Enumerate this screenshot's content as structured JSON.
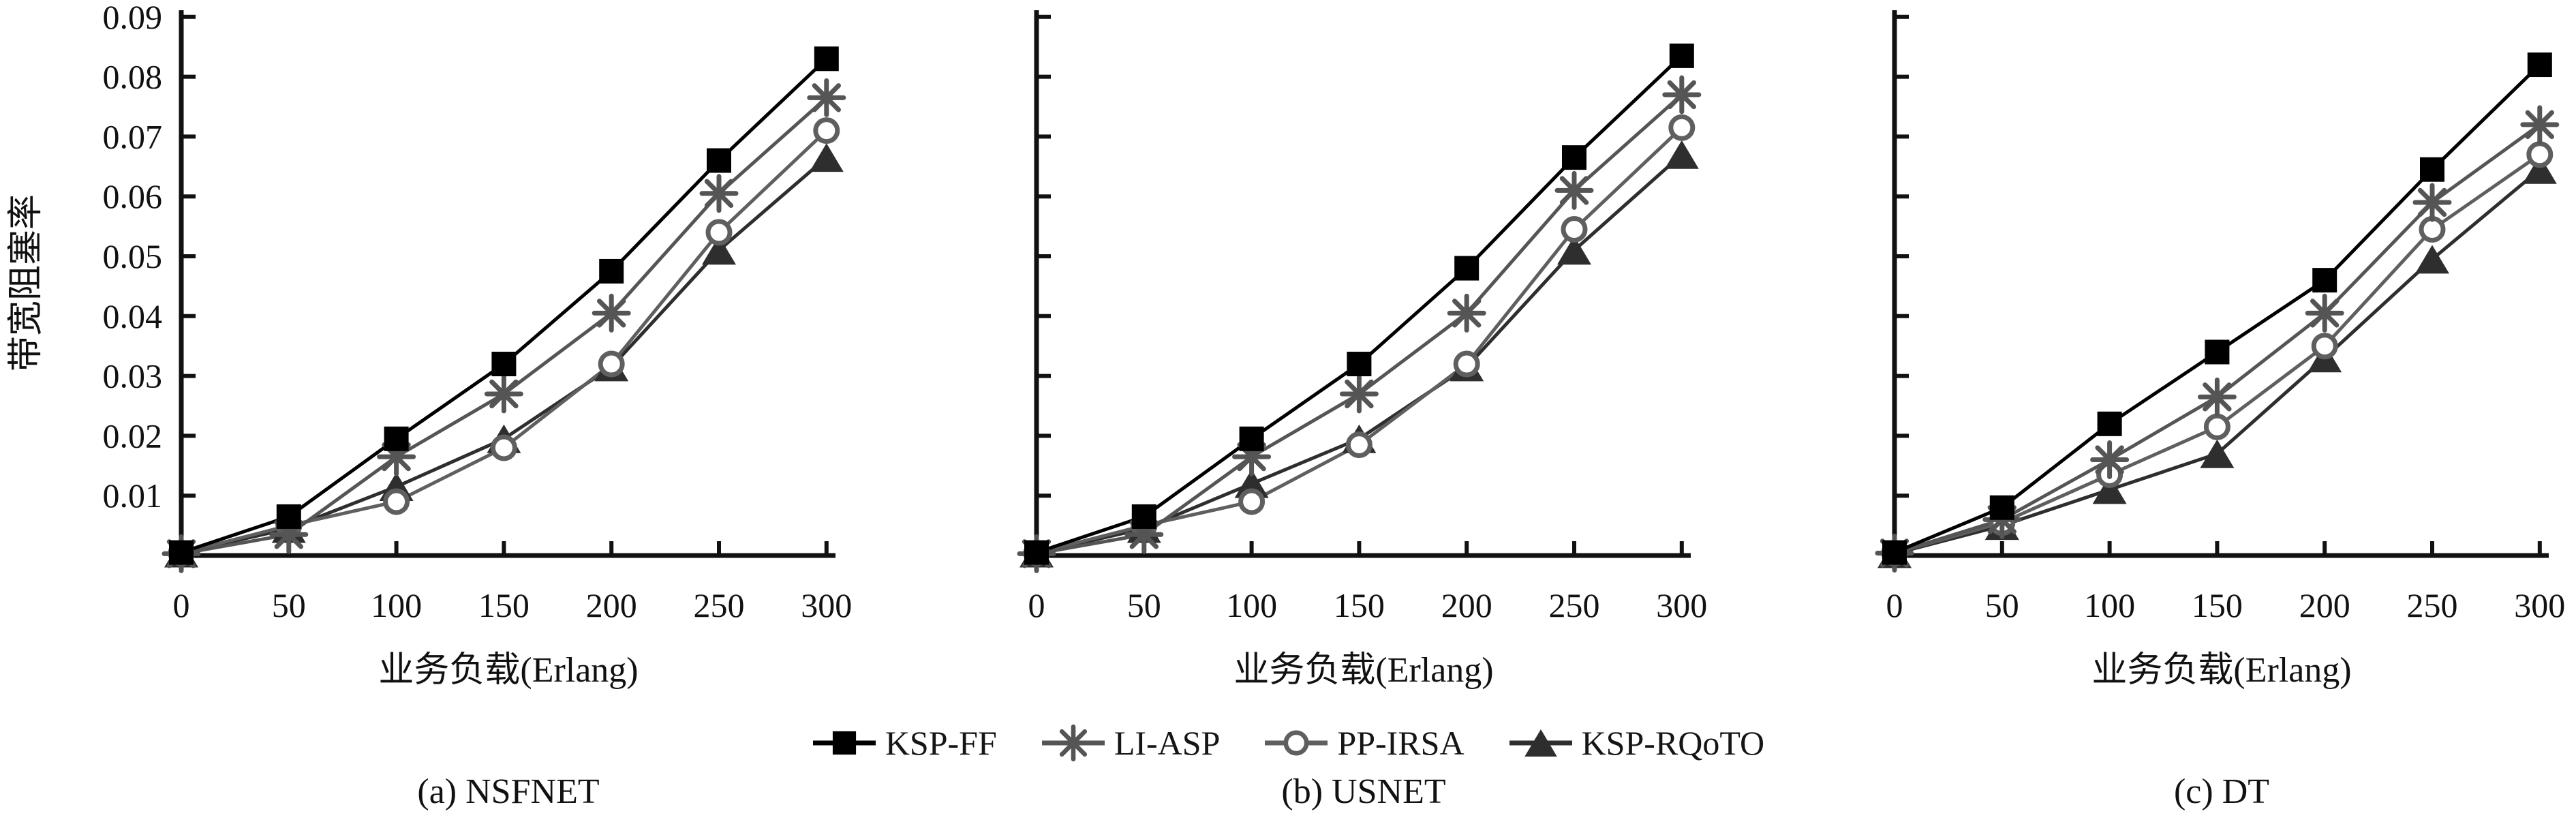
{
  "figure_title": "",
  "y_axis_label": "带宽阻塞率",
  "x_axis_label": "业务负载(Erlang)",
  "captions": [
    "(a) NSFNET",
    "(b) USNET",
    "(c) DT"
  ],
  "legend": {
    "position": "bottom-center",
    "items": [
      {
        "label": "KSP-FF",
        "marker": "filled-square",
        "color": "#000000"
      },
      {
        "label": "LI-ASP",
        "marker": "asterisk",
        "color": "#555555"
      },
      {
        "label": "PP-IRSA",
        "marker": "open-circle",
        "color": "#5f5f5f"
      },
      {
        "label": "KSP-RQoTO",
        "marker": "filled-triangle",
        "color": "#2e2e2e"
      }
    ]
  },
  "chart_data": [
    {
      "type": "line",
      "title": "(a) NSFNET",
      "xlabel": "业务负载(Erlang)",
      "ylabel": "带宽阻塞率",
      "xlim": [
        0,
        300
      ],
      "ylim": [
        0,
        0.09
      ],
      "x_ticks": [
        0,
        50,
        100,
        150,
        200,
        250,
        300
      ],
      "y_ticks": [
        0.01,
        0.02,
        0.03,
        0.04,
        0.05,
        0.06,
        0.07,
        0.08,
        0.09
      ],
      "y_tick_labels": [
        "0.01",
        "0.02",
        "0.03",
        "0.04",
        "0.05",
        "0.06",
        "0.07",
        "0.08",
        "0.09"
      ],
      "show_y_tick_labels": true,
      "grid": false,
      "x": [
        0,
        50,
        100,
        150,
        200,
        250,
        300
      ],
      "series": [
        {
          "name": "KSP-FF",
          "marker": "filled-square",
          "color": "#000000",
          "values": [
            0.0005,
            0.0065,
            0.0195,
            0.032,
            0.0475,
            0.066,
            0.083
          ]
        },
        {
          "name": "LI-ASP",
          "marker": "asterisk",
          "color": "#555555",
          "values": [
            0.0003,
            0.0035,
            0.0165,
            0.027,
            0.0405,
            0.0605,
            0.0765
          ]
        },
        {
          "name": "PP-IRSA",
          "marker": "open-circle",
          "color": "#5f5f5f",
          "values": [
            0.0004,
            0.005,
            0.009,
            0.018,
            0.032,
            0.054,
            0.071
          ]
        },
        {
          "name": "KSP-RQoTO",
          "marker": "filled-triangle",
          "color": "#2e2e2e",
          "values": [
            0.0004,
            0.0045,
            0.0115,
            0.0195,
            0.0315,
            0.051,
            0.0665
          ]
        }
      ]
    },
    {
      "type": "line",
      "title": "(b) USNET",
      "xlabel": "业务负载(Erlang)",
      "ylabel": "带宽阻塞率",
      "xlim": [
        0,
        300
      ],
      "ylim": [
        0,
        0.09
      ],
      "x_ticks": [
        0,
        50,
        100,
        150,
        200,
        250,
        300
      ],
      "y_ticks": [
        0.01,
        0.02,
        0.03,
        0.04,
        0.05,
        0.06,
        0.07,
        0.08,
        0.09
      ],
      "y_tick_labels": [],
      "show_y_tick_labels": false,
      "grid": false,
      "x": [
        0,
        50,
        100,
        150,
        200,
        250,
        300
      ],
      "series": [
        {
          "name": "KSP-FF",
          "marker": "filled-square",
          "color": "#000000",
          "values": [
            0.0005,
            0.0065,
            0.0195,
            0.032,
            0.048,
            0.0665,
            0.0835
          ]
        },
        {
          "name": "LI-ASP",
          "marker": "asterisk",
          "color": "#555555",
          "values": [
            0.0003,
            0.0035,
            0.0165,
            0.027,
            0.0405,
            0.061,
            0.077
          ]
        },
        {
          "name": "PP-IRSA",
          "marker": "open-circle",
          "color": "#5f5f5f",
          "values": [
            0.0004,
            0.005,
            0.009,
            0.0185,
            0.032,
            0.0545,
            0.0715
          ]
        },
        {
          "name": "KSP-RQoTO",
          "marker": "filled-triangle",
          "color": "#2e2e2e",
          "values": [
            0.0004,
            0.0045,
            0.012,
            0.0195,
            0.0315,
            0.051,
            0.067
          ]
        }
      ]
    },
    {
      "type": "line",
      "title": "(c) DT",
      "xlabel": "业务负载(Erlang)",
      "ylabel": "带宽阻塞率",
      "xlim": [
        0,
        300
      ],
      "ylim": [
        0,
        0.09
      ],
      "x_ticks": [
        0,
        50,
        100,
        150,
        200,
        250,
        300
      ],
      "y_ticks": [
        0.01,
        0.02,
        0.03,
        0.04,
        0.05,
        0.06,
        0.07,
        0.08,
        0.09
      ],
      "y_tick_labels": [],
      "show_y_tick_labels": false,
      "grid": false,
      "x": [
        0,
        50,
        100,
        150,
        200,
        250,
        300
      ],
      "series": [
        {
          "name": "KSP-FF",
          "marker": "filled-square",
          "color": "#000000",
          "values": [
            0.0005,
            0.008,
            0.022,
            0.034,
            0.046,
            0.0645,
            0.082
          ]
        },
        {
          "name": "LI-ASP",
          "marker": "asterisk",
          "color": "#555555",
          "values": [
            0.0004,
            0.006,
            0.016,
            0.0265,
            0.0405,
            0.059,
            0.072
          ]
        },
        {
          "name": "PP-IRSA",
          "marker": "open-circle",
          "color": "#5f5f5f",
          "values": [
            0.0004,
            0.0055,
            0.0135,
            0.0215,
            0.035,
            0.0545,
            0.067
          ]
        },
        {
          "name": "KSP-RQoTO",
          "marker": "filled-triangle",
          "color": "#2e2e2e",
          "values": [
            0.0003,
            0.005,
            0.011,
            0.017,
            0.033,
            0.0495,
            0.0645
          ]
        }
      ]
    }
  ]
}
